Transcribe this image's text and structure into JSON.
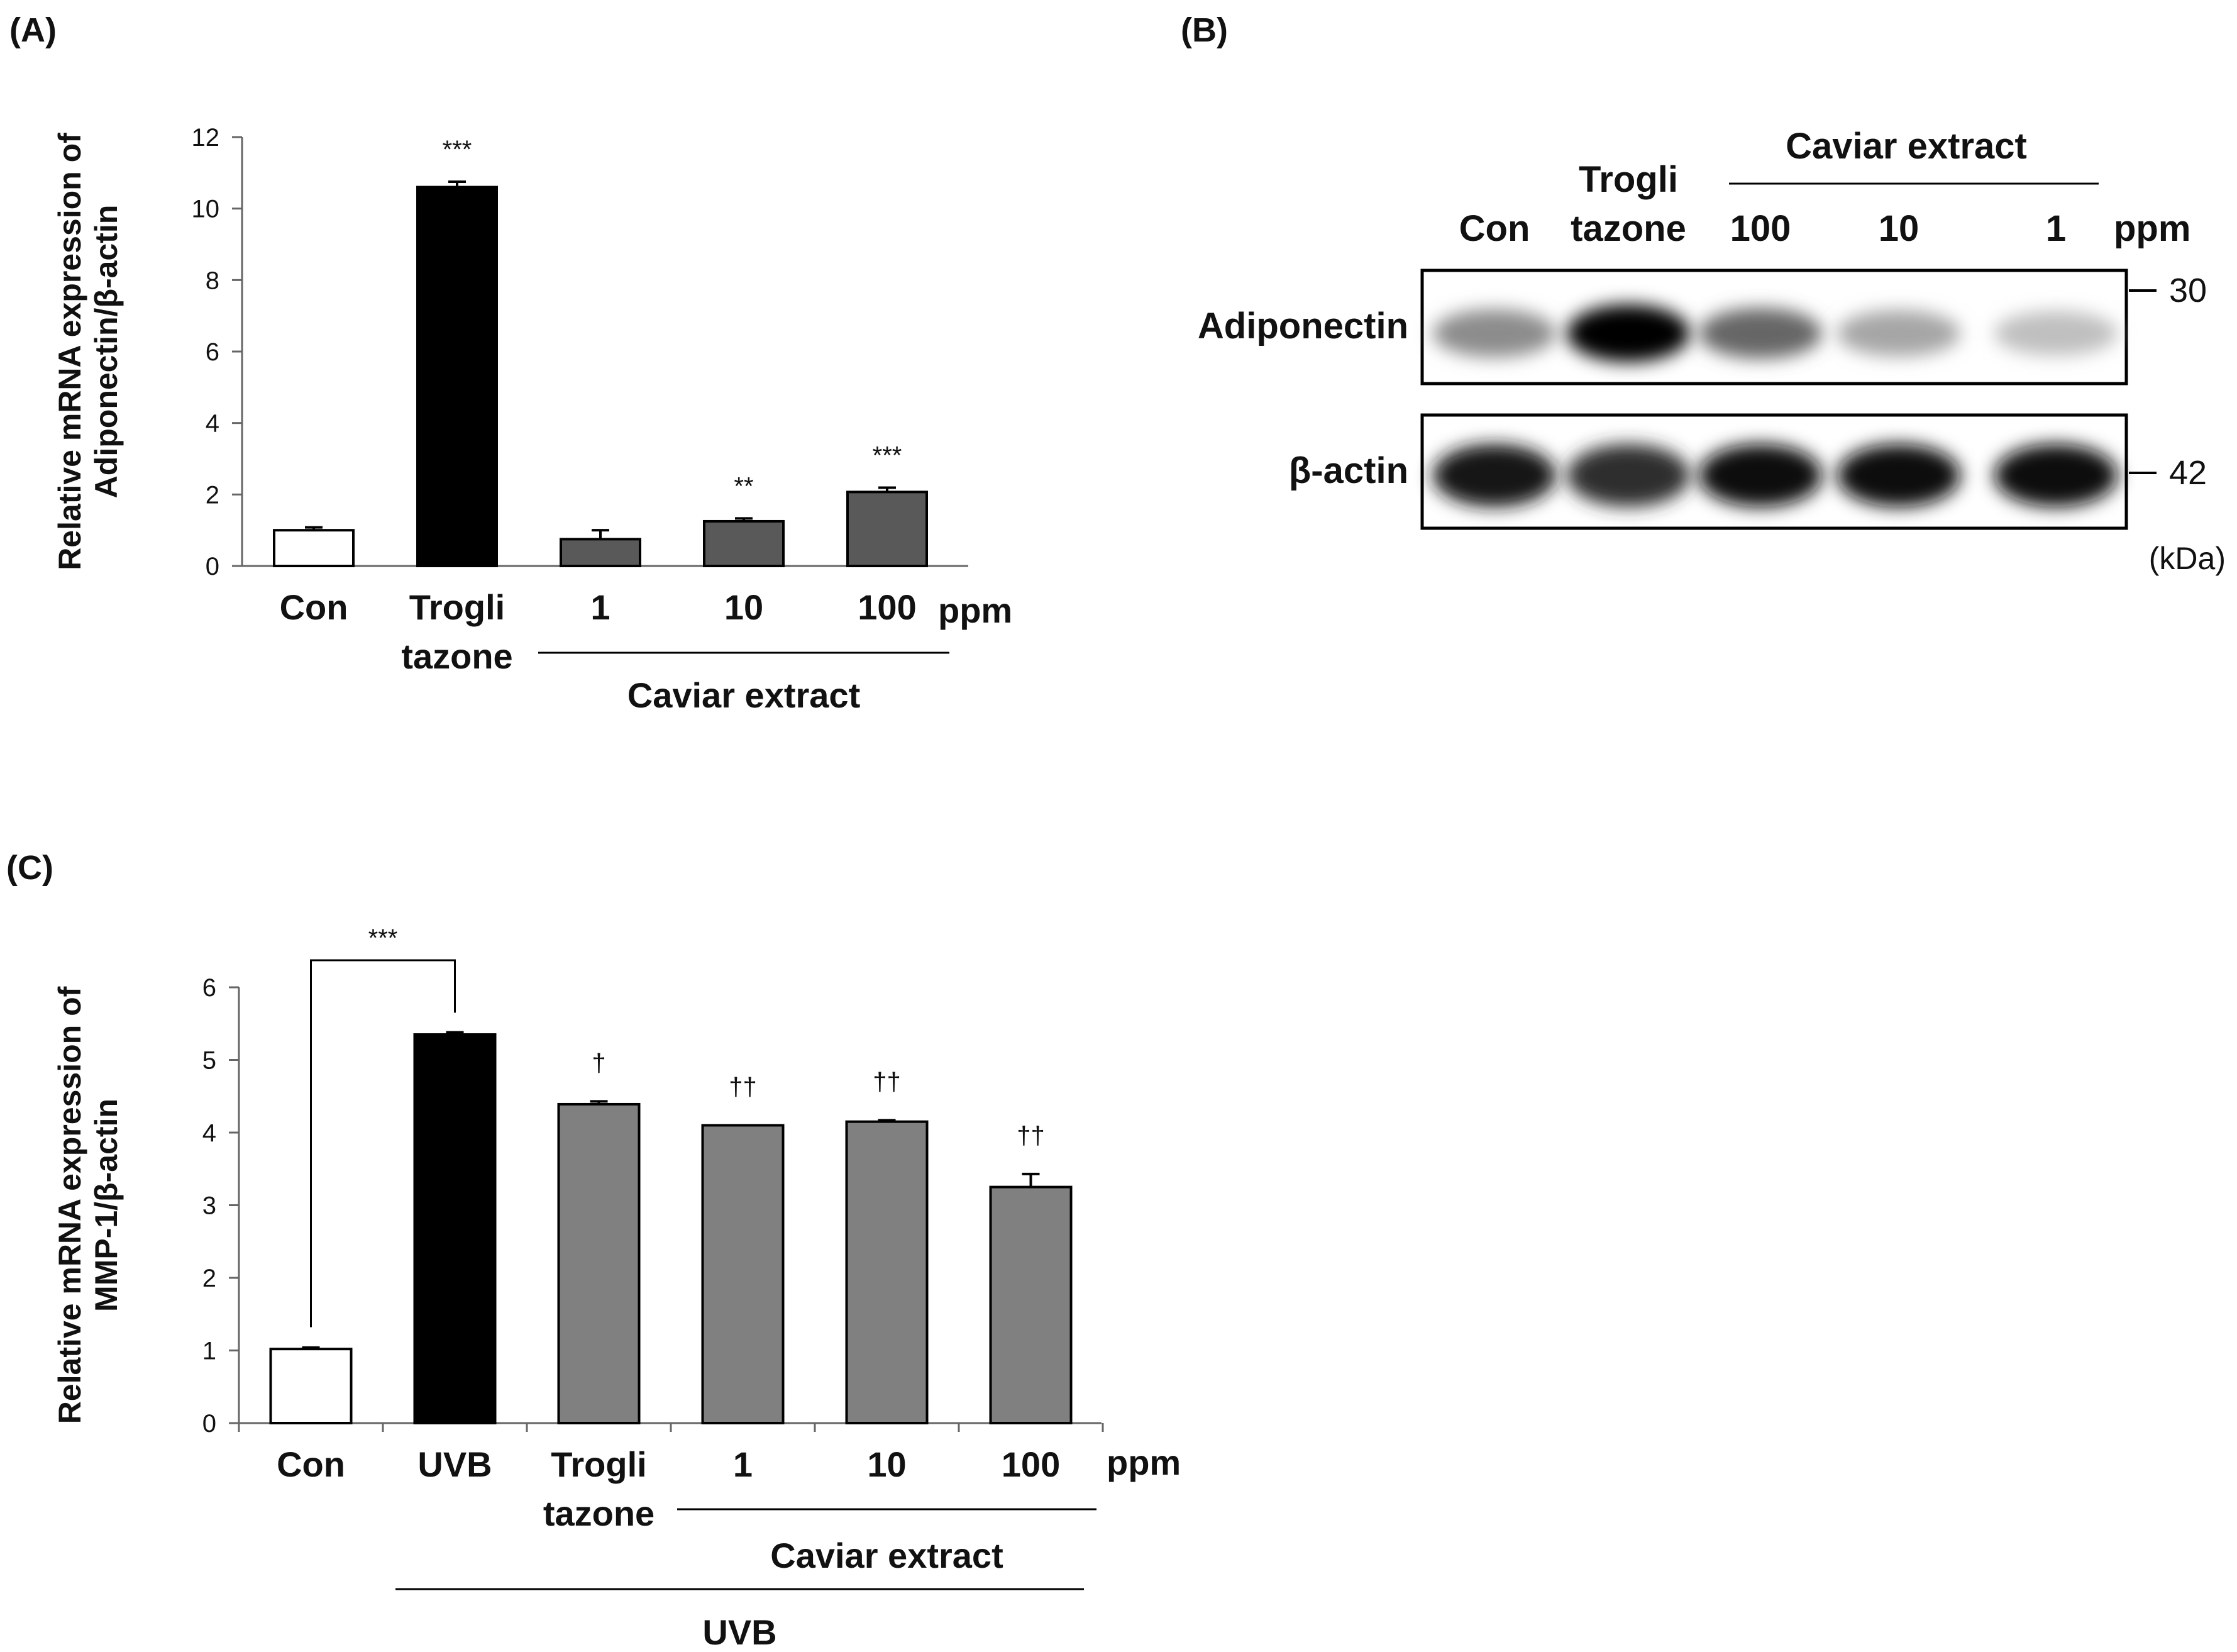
{
  "panels": {
    "a": "(A)",
    "b": "(B)",
    "c": "(C)"
  },
  "chart_data": [
    {
      "type": "bar",
      "panel": "(A)",
      "ylabel_lines": [
        "Relative mRNA expression of",
        "Adiponectin/β-actin"
      ],
      "ylim": [
        0,
        12
      ],
      "yticks": [
        0,
        2,
        4,
        6,
        8,
        10,
        12
      ],
      "categories": [
        [
          "Con"
        ],
        [
          "Trogli",
          "tazone"
        ],
        [
          "1"
        ],
        [
          "10"
        ],
        [
          "100"
        ]
      ],
      "values": [
        1.0,
        10.6,
        0.75,
        1.25,
        2.07
      ],
      "errors": [
        0.08,
        0.15,
        0.25,
        0.08,
        0.12
      ],
      "significance": [
        "",
        "***",
        "",
        "**",
        "***"
      ],
      "bar_colors": [
        "#ffffff",
        "#000000",
        "#595959",
        "#595959",
        "#595959"
      ],
      "unit_label": "ppm",
      "group_label": "Caviar extract",
      "grid": false
    },
    {
      "type": "bar",
      "panel": "(C)",
      "ylabel_lines": [
        "Relative mRNA expression of",
        "MMP-1/β-actin"
      ],
      "ylim": [
        0,
        6
      ],
      "yticks": [
        0,
        1,
        2,
        3,
        4,
        5,
        6
      ],
      "categories": [
        [
          "Con"
        ],
        [
          "UVB"
        ],
        [
          "Trogli",
          "tazone"
        ],
        [
          "1"
        ],
        [
          "10"
        ],
        [
          "100"
        ]
      ],
      "values": [
        1.02,
        5.35,
        4.39,
        4.1,
        4.15,
        3.25
      ],
      "errors": [
        0.02,
        0.03,
        0.04,
        0.0,
        0.02,
        0.18
      ],
      "significance": [
        "",
        "",
        "†",
        "††",
        "††",
        "††"
      ],
      "bracket_label": "***",
      "bar_colors": [
        "#ffffff",
        "#000000",
        "#808080",
        "#808080",
        "#808080",
        "#808080"
      ],
      "unit_label": "ppm",
      "group_label": "Caviar extract",
      "outer_group_label": "UVB",
      "grid": false
    }
  ],
  "blot": {
    "panel": "(B)",
    "lanes": [
      "Con",
      [
        "Trogli",
        "tazone"
      ],
      "100",
      "10",
      "1"
    ],
    "unit_label": "ppm",
    "group_label": "Caviar extract",
    "rows": [
      {
        "name": "Adiponectin",
        "marker": "30",
        "intensities": [
          0.45,
          1.0,
          0.6,
          0.35,
          0.25
        ]
      },
      {
        "name": "β-actin",
        "marker": "42",
        "intensities": [
          0.92,
          0.82,
          0.95,
          0.95,
          0.95
        ]
      }
    ],
    "kda_label": "(kDa)"
  }
}
